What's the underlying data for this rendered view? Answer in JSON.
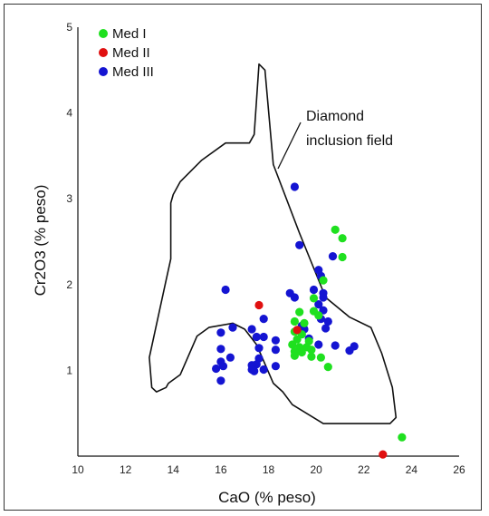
{
  "chart_data": {
    "type": "scatter",
    "title": "",
    "xlabel": "CaO (% peso)",
    "ylabel": "Cr2O3 (% peso)",
    "xlim": [
      10,
      26
    ],
    "ylim": [
      0,
      5
    ],
    "x_ticks": [
      "10",
      "12",
      "14",
      "16",
      "18",
      "20",
      "22",
      "24",
      "26"
    ],
    "y_ticks": [
      "1",
      "2",
      "3",
      "4",
      "5"
    ],
    "grid": false,
    "legend_position": "top-left",
    "annotation": [
      "Diamond",
      "inclusion field"
    ],
    "field_polygon": [
      [
        17.6,
        4.57
      ],
      [
        17.85,
        4.5
      ],
      [
        18.2,
        3.4
      ],
      [
        19.3,
        2.6
      ],
      [
        20.4,
        1.85
      ],
      [
        21.4,
        1.62
      ],
      [
        22.3,
        1.5
      ],
      [
        22.75,
        1.2
      ],
      [
        23.2,
        0.8
      ],
      [
        23.35,
        0.45
      ],
      [
        23.1,
        0.38
      ],
      [
        20.3,
        0.38
      ],
      [
        19.0,
        0.6
      ],
      [
        18.6,
        0.75
      ],
      [
        18.2,
        0.85
      ],
      [
        17.5,
        1.3
      ],
      [
        17.0,
        1.48
      ],
      [
        16.5,
        1.55
      ],
      [
        15.5,
        1.5
      ],
      [
        15.0,
        1.4
      ],
      [
        14.3,
        0.95
      ],
      [
        13.8,
        0.85
      ],
      [
        13.7,
        0.8
      ],
      [
        13.3,
        0.75
      ],
      [
        13.1,
        0.8
      ],
      [
        13.0,
        1.15
      ],
      [
        13.7,
        2.05
      ],
      [
        13.9,
        2.3
      ],
      [
        13.9,
        2.95
      ],
      [
        14.0,
        3.05
      ],
      [
        14.3,
        3.2
      ],
      [
        15.2,
        3.45
      ],
      [
        16.2,
        3.65
      ],
      [
        17.2,
        3.65
      ],
      [
        17.4,
        3.75
      ]
    ],
    "series": [
      {
        "name": "Med I",
        "color": "#1fe01f",
        "points": [
          [
            20.8,
            2.64
          ],
          [
            21.1,
            2.54
          ],
          [
            21.1,
            2.32
          ],
          [
            20.3,
            2.05
          ],
          [
            19.9,
            1.84
          ],
          [
            19.9,
            1.69
          ],
          [
            20.1,
            1.64
          ],
          [
            19.3,
            1.68
          ],
          [
            19.1,
            1.57
          ],
          [
            19.1,
            1.45
          ],
          [
            19.5,
            1.55
          ],
          [
            19.4,
            1.42
          ],
          [
            19.2,
            1.36
          ],
          [
            19.7,
            1.34
          ],
          [
            19.0,
            1.3
          ],
          [
            19.3,
            1.27
          ],
          [
            19.6,
            1.27
          ],
          [
            19.1,
            1.22
          ],
          [
            19.4,
            1.21
          ],
          [
            19.8,
            1.24
          ],
          [
            19.1,
            1.17
          ],
          [
            19.8,
            1.16
          ],
          [
            20.2,
            1.15
          ],
          [
            20.5,
            1.04
          ],
          [
            23.6,
            0.22
          ]
        ]
      },
      {
        "name": "Med II",
        "color": "#e01010",
        "points": [
          [
            17.6,
            1.76
          ],
          [
            19.2,
            1.47
          ],
          [
            22.8,
            0.02
          ]
        ]
      },
      {
        "name": "Med III",
        "color": "#1414d2",
        "points": [
          [
            19.1,
            3.14
          ],
          [
            19.3,
            2.46
          ],
          [
            20.7,
            2.33
          ],
          [
            20.1,
            2.17
          ],
          [
            20.2,
            2.1
          ],
          [
            16.2,
            1.94
          ],
          [
            18.9,
            1.9
          ],
          [
            19.9,
            1.94
          ],
          [
            20.3,
            1.9
          ],
          [
            20.3,
            1.85
          ],
          [
            19.1,
            1.85
          ],
          [
            20.1,
            1.77
          ],
          [
            20.3,
            1.7
          ],
          [
            17.8,
            1.6
          ],
          [
            20.2,
            1.6
          ],
          [
            20.5,
            1.57
          ],
          [
            19.4,
            1.52
          ],
          [
            20.4,
            1.49
          ],
          [
            16.5,
            1.5
          ],
          [
            17.3,
            1.48
          ],
          [
            19.5,
            1.48
          ],
          [
            16.0,
            1.44
          ],
          [
            17.5,
            1.39
          ],
          [
            17.8,
            1.39
          ],
          [
            18.3,
            1.35
          ],
          [
            19.7,
            1.37
          ],
          [
            20.1,
            1.3
          ],
          [
            20.8,
            1.29
          ],
          [
            16.0,
            1.25
          ],
          [
            17.6,
            1.26
          ],
          [
            18.3,
            1.24
          ],
          [
            21.6,
            1.28
          ],
          [
            21.4,
            1.23
          ],
          [
            16.4,
            1.15
          ],
          [
            17.6,
            1.14
          ],
          [
            16.0,
            1.1
          ],
          [
            17.3,
            1.06
          ],
          [
            17.5,
            1.07
          ],
          [
            18.3,
            1.05
          ],
          [
            15.8,
            1.02
          ],
          [
            16.1,
            1.05
          ],
          [
            17.3,
            1.01
          ],
          [
            17.8,
            1.01
          ],
          [
            17.4,
            0.99
          ],
          [
            16.0,
            0.88
          ]
        ]
      }
    ]
  }
}
